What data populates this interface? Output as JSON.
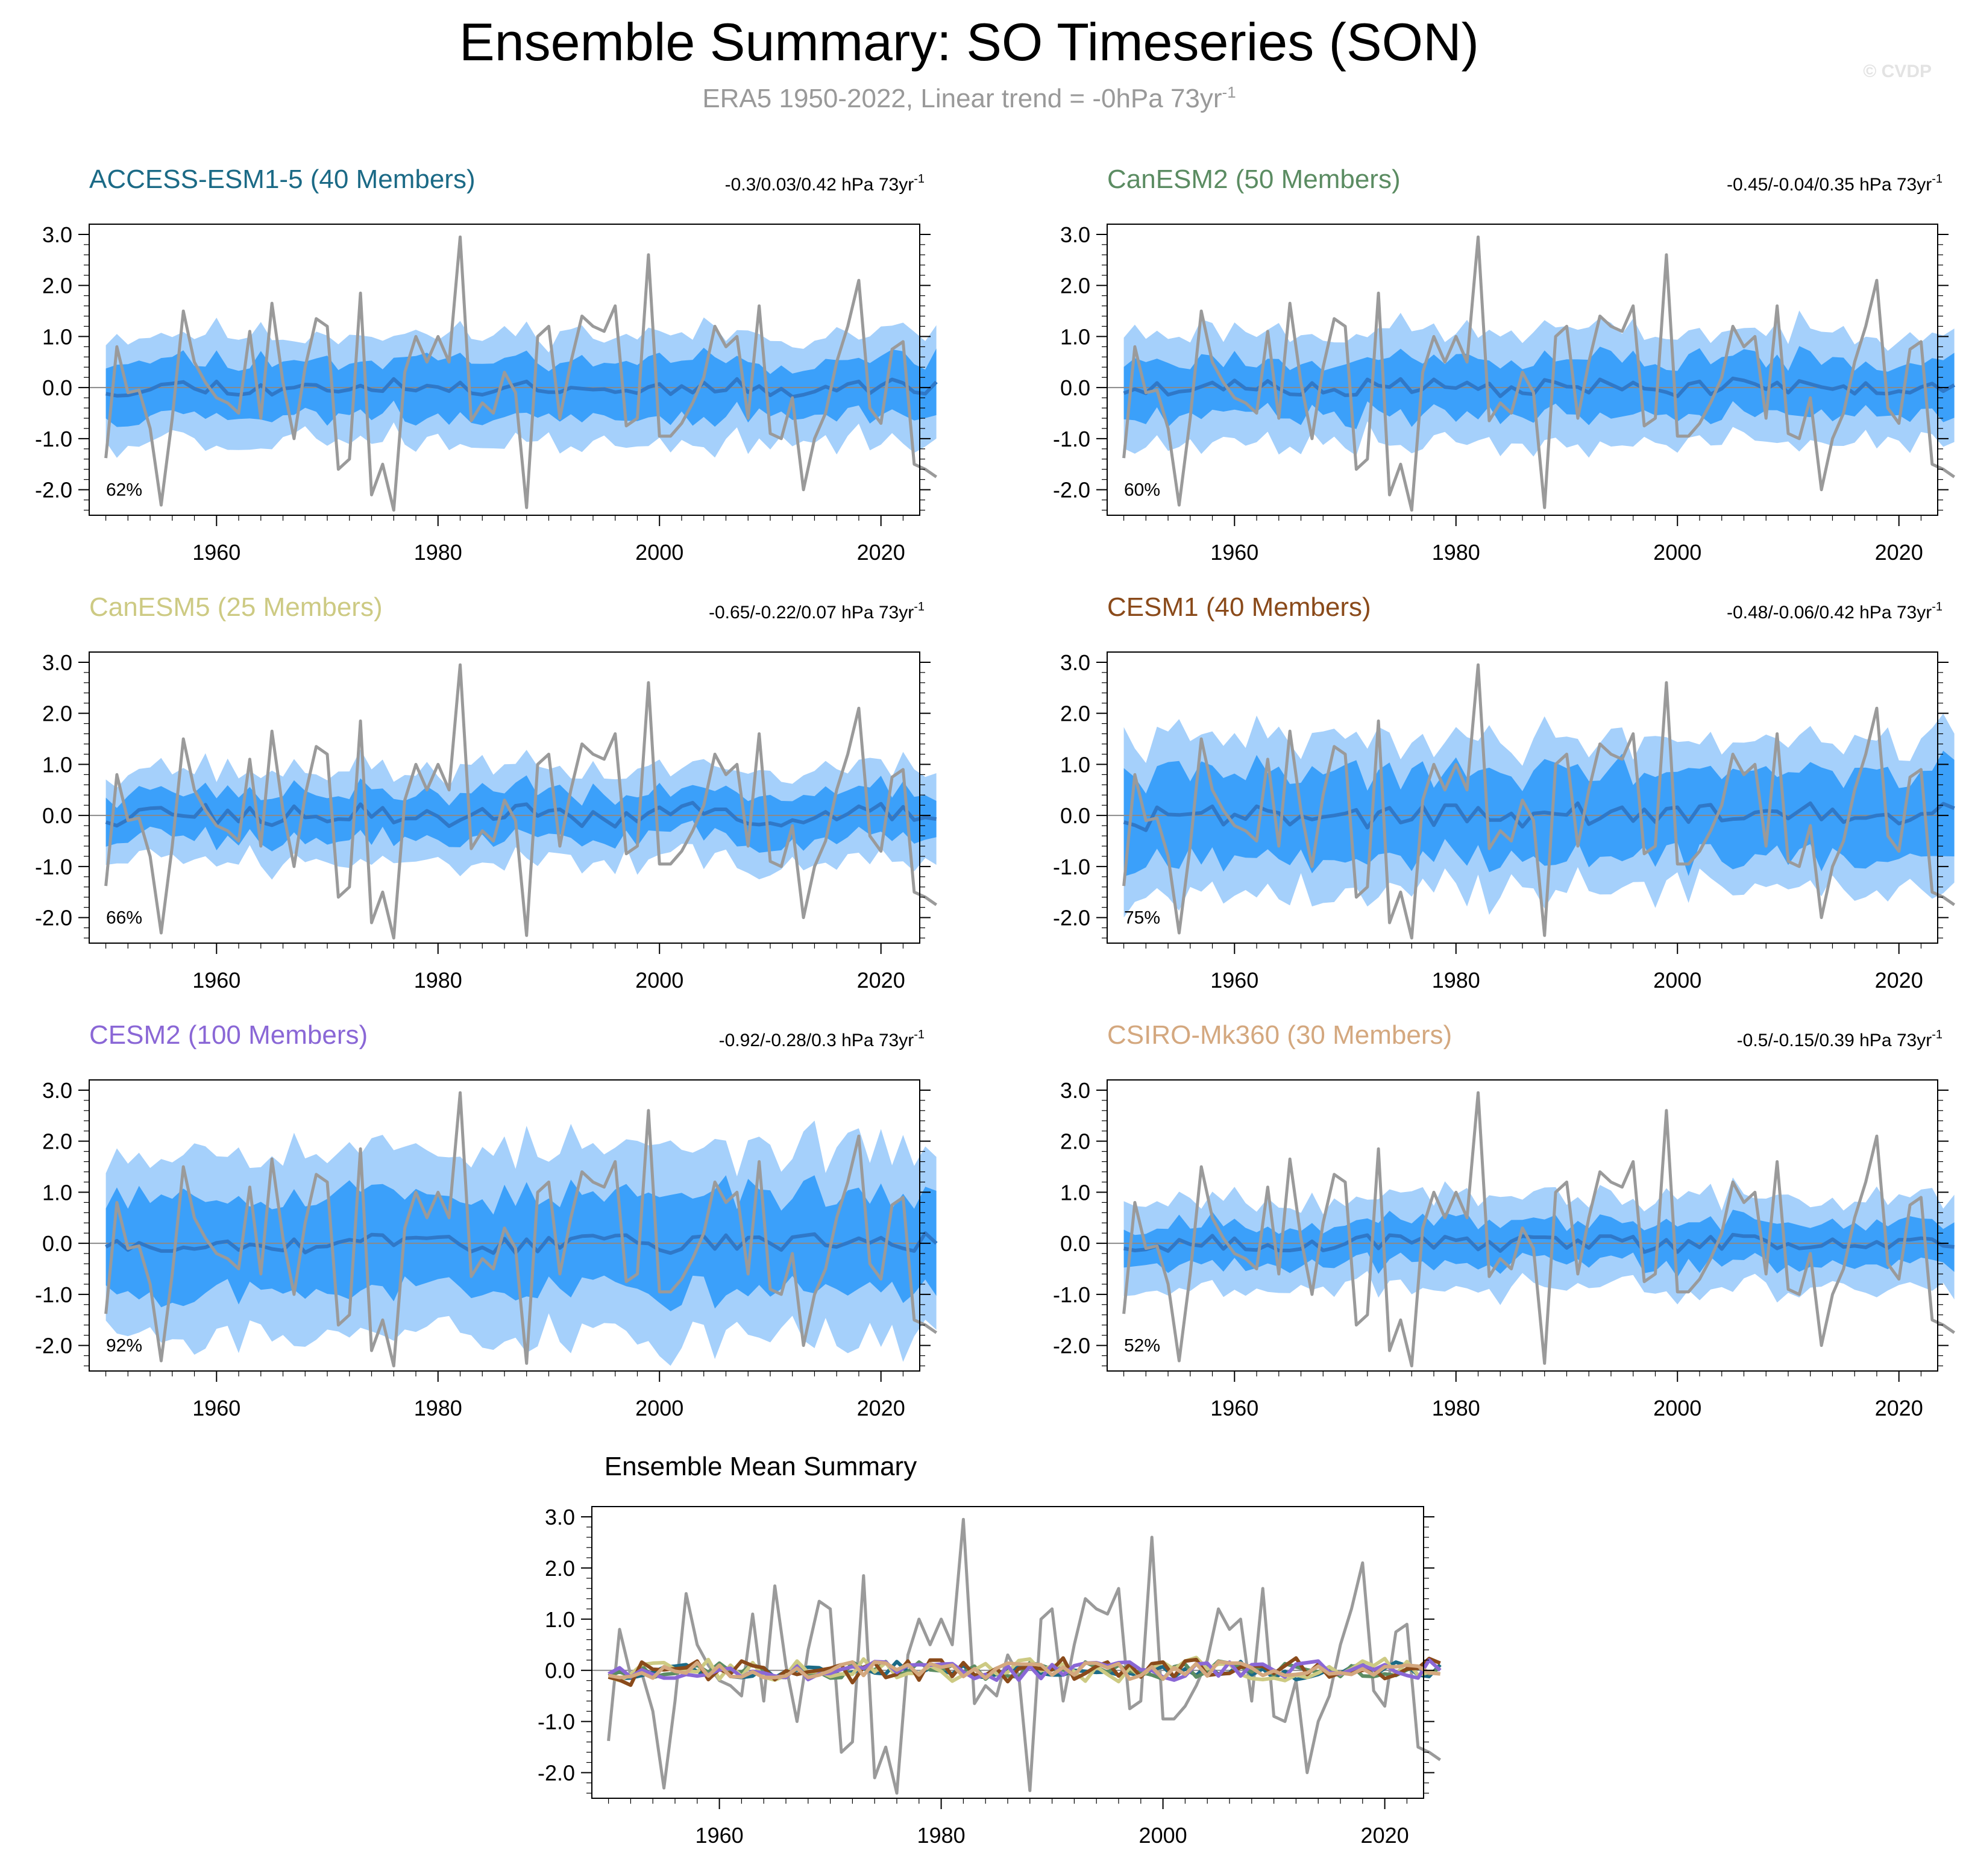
{
  "figure": {
    "title": "Ensemble Summary: SO Timeseries (SON)",
    "subtitle": "ERA5 1950-2022, Linear trend = -0hPa 73yr",
    "subtitle_sup": "-1",
    "copyright": "© CVDP",
    "summary_title": "Ensemble Mean Summary"
  },
  "colors": {
    "outer_band": "#a5d0fb",
    "inner_band": "#3ba0fa",
    "ensemble_mean": "#2f78c8",
    "observed": "#9a9a9a",
    "zero_line": "#8a8a8a"
  },
  "axes": {
    "xlim": [
      1948.5,
      2023.5
    ],
    "ylim": [
      -2.5,
      3.2
    ],
    "xticks": [
      1960,
      1980,
      2000,
      2020
    ],
    "yticks": [
      3.0,
      2.0,
      1.0,
      0.0,
      -1.0,
      -2.0
    ],
    "ytick_labels": [
      "3.0",
      "2.0",
      "1.0",
      "0.0",
      "-1.0",
      "-2.0"
    ]
  },
  "chart_data": {
    "type": "line",
    "x_start": 1950,
    "observed_name": "ERA5",
    "observed": [
      -1.38,
      0.8,
      -0.1,
      -0.05,
      -0.8,
      -2.3,
      -0.6,
      1.5,
      0.5,
      0.1,
      -0.2,
      -0.3,
      -0.5,
      1.1,
      -0.6,
      1.65,
      0.1,
      -1.0,
      0.4,
      1.35,
      1.2,
      -1.6,
      -1.4,
      1.85,
      -2.1,
      -1.5,
      -2.4,
      0.3,
      1.0,
      0.5,
      1.0,
      0.5,
      2.95,
      -0.65,
      -0.3,
      -0.5,
      0.3,
      -0.1,
      -2.35,
      1.0,
      1.2,
      -0.6,
      0.5,
      1.4,
      1.2,
      1.1,
      1.6,
      -0.75,
      -0.6,
      2.6,
      -0.95,
      -0.95,
      -0.7,
      -0.3,
      0.2,
      1.2,
      0.8,
      1.0,
      -0.6,
      1.6,
      -0.9,
      -1.0,
      -0.2,
      -2.0,
      -1.0,
      -0.5,
      0.5,
      1.2,
      2.1,
      -0.4,
      -0.7,
      0.75,
      0.9,
      -1.5,
      -1.6,
      -1.75
    ],
    "panels": [
      {
        "name": "ACCESS-ESM1-5 (40 Members)",
        "color": "#1b6a86",
        "trend": "-0.3/0.03/0.42 hPa 73yr",
        "trend_sup": "-1",
        "pct": "62%",
        "mean_amp": 0.15,
        "inner_amp": 0.55,
        "outer_amp": 0.5,
        "seed": 11
      },
      {
        "name": "CanESM2 (50 Members)",
        "color": "#5b8c62",
        "trend": "-0.45/-0.04/0.35 hPa 73yr",
        "trend_sup": "-1",
        "pct": "60%",
        "mean_amp": 0.15,
        "inner_amp": 0.55,
        "outer_amp": 0.55,
        "seed": 23
      },
      {
        "name": "CanESM5 (25 Members)",
        "color": "#cdca83",
        "trend": "-0.65/-0.22/0.07 hPa 73yr",
        "trend_sup": "-1",
        "pct": "66%",
        "mean_amp": 0.2,
        "inner_amp": 0.45,
        "outer_amp": 0.45,
        "seed": 37
      },
      {
        "name": "CESM1 (40 Members)",
        "color": "#8a4a1a",
        "trend": "-0.48/-0.06/0.42 hPa 73yr",
        "trend_sup": "-1",
        "pct": "75%",
        "mean_amp": 0.25,
        "inner_amp": 0.85,
        "outer_amp": 0.65,
        "seed": 41
      },
      {
        "name": "CESM2 (100 Members)",
        "color": "#8a67d6",
        "trend": "-0.92/-0.28/0.3 hPa 73yr",
        "trend_sup": "-1",
        "pct": "92%",
        "mean_amp": 0.18,
        "inner_amp": 0.95,
        "outer_amp": 0.9,
        "seed": 53
      },
      {
        "name": "CSIRO-Mk360 (30 Members)",
        "color": "#d4a87f",
        "trend": "-0.5/-0.15/0.39 hPa 73yr",
        "trend_sup": "-1",
        "pct": "52%",
        "mean_amp": 0.15,
        "inner_amp": 0.4,
        "outer_amp": 0.5,
        "seed": 67
      }
    ],
    "summary_series_order": [
      0,
      1,
      2,
      3,
      4,
      5
    ]
  }
}
